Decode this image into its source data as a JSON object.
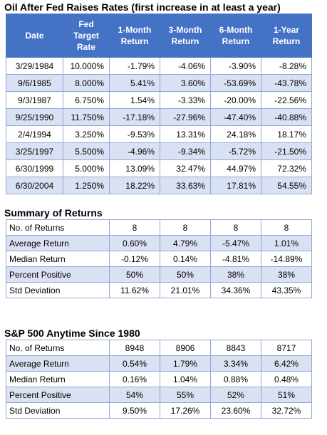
{
  "oil": {
    "title": "Oil After Fed Raises Rates (first increase in at least a year)",
    "headers": [
      "Date",
      "Fed\nTarget\nRate",
      "1-Month\nReturn",
      "3-Month\nReturn",
      "6-Month\nReturn",
      "1-Year\nReturn"
    ],
    "rows": [
      [
        "3/29/1984",
        "10.000%",
        "-1.79%",
        "-4.06%",
        "-3.90%",
        "-8.28%"
      ],
      [
        "9/6/1985",
        "8.000%",
        "5.41%",
        "3.60%",
        "-53.69%",
        "-43.78%"
      ],
      [
        "9/3/1987",
        "6.750%",
        "1.54%",
        "-3.33%",
        "-20.00%",
        "-22.56%"
      ],
      [
        "9/25/1990",
        "11.750%",
        "-17.18%",
        "-27.96%",
        "-47.40%",
        "-40.88%"
      ],
      [
        "2/4/1994",
        "3.250%",
        "-9.53%",
        "13.31%",
        "24.18%",
        "18.17%"
      ],
      [
        "3/25/1997",
        "5.500%",
        "-4.96%",
        "-9.34%",
        "-5.72%",
        "-21.50%"
      ],
      [
        "6/30/1999",
        "5.000%",
        "13.09%",
        "32.47%",
        "44.97%",
        "72.32%"
      ],
      [
        "6/30/2004",
        "1.250%",
        "18.22%",
        "33.63%",
        "17.81%",
        "54.55%"
      ]
    ]
  },
  "summary": {
    "title": "Summary of Returns",
    "rows": [
      [
        "No. of Returns",
        "8",
        "8",
        "8",
        "8"
      ],
      [
        "Average Return",
        "0.60%",
        "4.79%",
        "-5.47%",
        "1.01%"
      ],
      [
        "Median Return",
        "-0.12%",
        "0.14%",
        "-4.81%",
        "-14.89%"
      ],
      [
        "Percent Positive",
        "50%",
        "50%",
        "38%",
        "38%"
      ],
      [
        "Std Deviation",
        "11.62%",
        "21.01%",
        "34.36%",
        "43.35%"
      ]
    ]
  },
  "sp500": {
    "title": "S&P 500 Anytime Since 1980",
    "rows": [
      [
        "No. of Returns",
        "8948",
        "8906",
        "8843",
        "8717"
      ],
      [
        "Average Return",
        "0.54%",
        "1.79%",
        "3.34%",
        "6.42%"
      ],
      [
        "Median Return",
        "0.16%",
        "1.04%",
        "0.88%",
        "0.48%"
      ],
      [
        "Percent Positive",
        "54%",
        "55%",
        "52%",
        "51%"
      ],
      [
        "Std Deviation",
        "9.50%",
        "17.26%",
        "23.60%",
        "32.72%"
      ]
    ]
  },
  "colors": {
    "header_bg": "#4472c4",
    "stripe_bg": "#d9e1f2",
    "border": "#8fa9d6"
  }
}
